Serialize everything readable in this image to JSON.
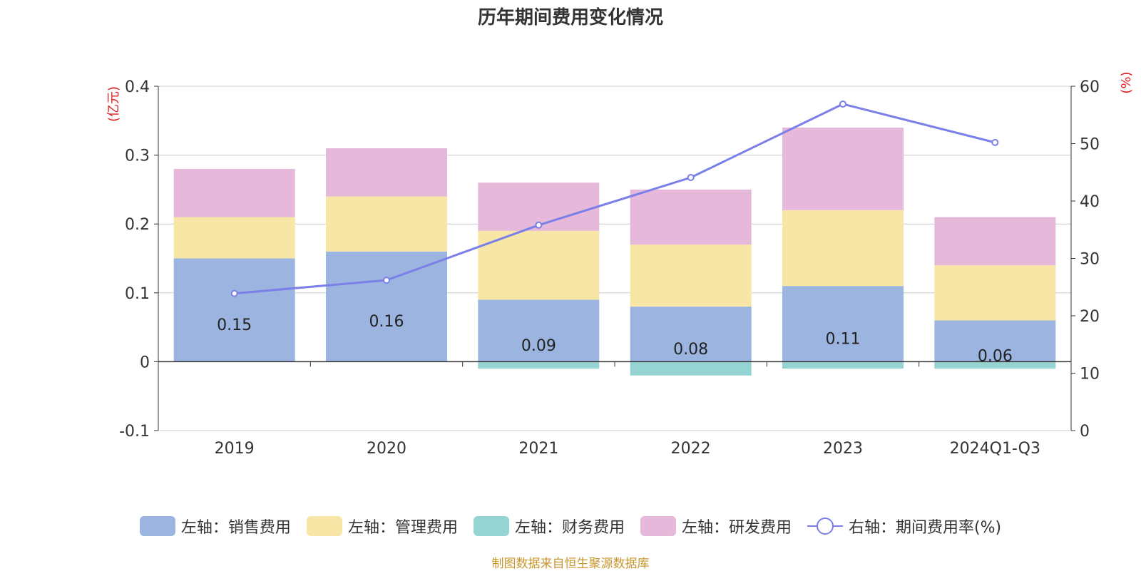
{
  "chart_data": {
    "type": "bar",
    "title": "历年期间费用变化情况",
    "categories": [
      "2019",
      "2020",
      "2021",
      "2022",
      "2023",
      "2024Q1-Q3"
    ],
    "ylabel_left": "(亿元)",
    "ylabel_right": "(%)",
    "ylim_left": [
      -0.1,
      0.4
    ],
    "yticks_left": [
      "-0.1",
      "0",
      "0.1",
      "0.2",
      "0.3",
      "0.4"
    ],
    "ylim_right": [
      0,
      60
    ],
    "yticks_right": [
      "0",
      "10",
      "20",
      "30",
      "40",
      "50",
      "60"
    ],
    "grid": true,
    "legend_position": "bottom",
    "series": [
      {
        "name": "左轴：销售费用",
        "axis": "left",
        "type": "bar",
        "stack": true,
        "color": "#9bb5e0",
        "values": [
          0.15,
          0.16,
          0.09,
          0.08,
          0.11,
          0.06
        ],
        "labels": [
          "0.15",
          "0.16",
          "0.09",
          "0.08",
          "0.11",
          "0.06"
        ]
      },
      {
        "name": "左轴：管理费用",
        "axis": "left",
        "type": "bar",
        "stack": true,
        "color": "#f8e6a6",
        "values": [
          0.06,
          0.08,
          0.1,
          0.09,
          0.11,
          0.08
        ]
      },
      {
        "name": "左轴：财务费用",
        "axis": "left",
        "type": "bar",
        "stack": true,
        "color": "#94d4d3",
        "values": [
          0.0,
          0.0,
          -0.01,
          -0.02,
          -0.01,
          -0.01
        ]
      },
      {
        "name": "左轴：研发费用",
        "axis": "left",
        "type": "bar",
        "stack": true,
        "color": "#e6b8da",
        "values": [
          0.07,
          0.07,
          0.07,
          0.08,
          0.12,
          0.07
        ]
      },
      {
        "name": "右轴：期间费用率(%)",
        "axis": "right",
        "type": "line",
        "color": "#7b7fe8",
        "values": [
          23.9,
          26.2,
          35.8,
          44.1,
          56.9,
          50.2
        ]
      }
    ],
    "source_note": "制图数据来自恒生聚源数据库"
  }
}
